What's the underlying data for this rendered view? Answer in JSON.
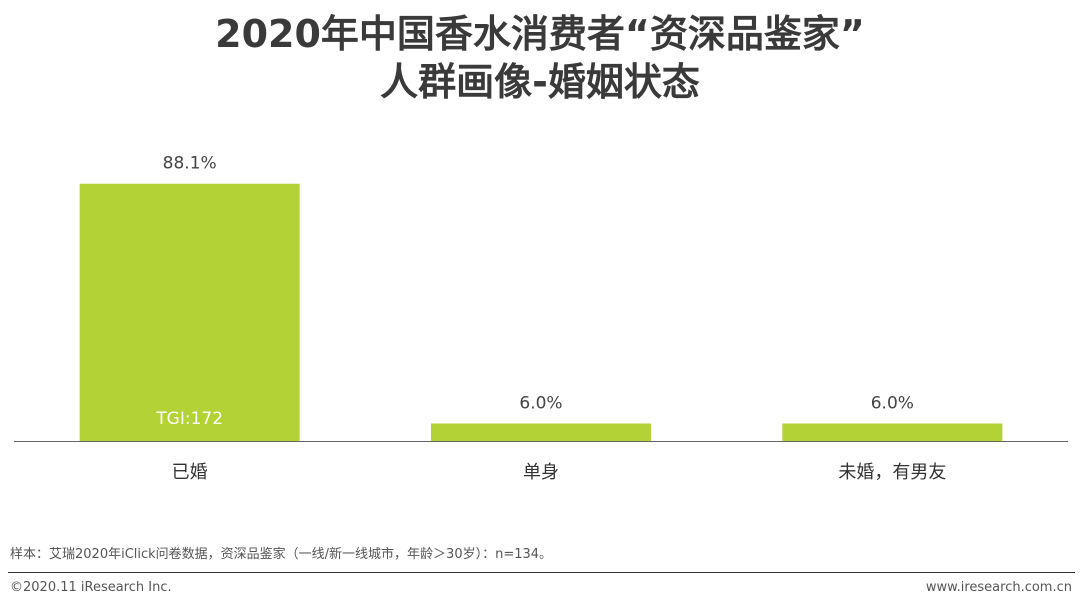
{
  "chart_data": {
    "type": "bar",
    "title": [
      "2020年中国香水消费者“资深品鉴家”",
      "人群画像-婚姻状态"
    ],
    "categories": [
      "已婚",
      "单身",
      "未婚，有男友"
    ],
    "values": [
      88.1,
      6.0,
      6.0
    ],
    "value_labels": [
      "88.1%",
      "6.0%",
      "6.0%"
    ],
    "bar_annotations": [
      "TGI:172",
      "",
      ""
    ],
    "unit": "%",
    "ylim": [
      0,
      100
    ],
    "grid": false,
    "legend": "none",
    "bar_color": "#B2D235",
    "annotation_color": "#ffffff"
  },
  "footnote": "样本：艾瑞2020年iClick问卷数据，资深品鉴家（一线/新一线城市，年龄＞30岁）：n=134。",
  "copyright": "©2020.11 iResearch Inc.",
  "website": "www.iresearch.com.cn"
}
